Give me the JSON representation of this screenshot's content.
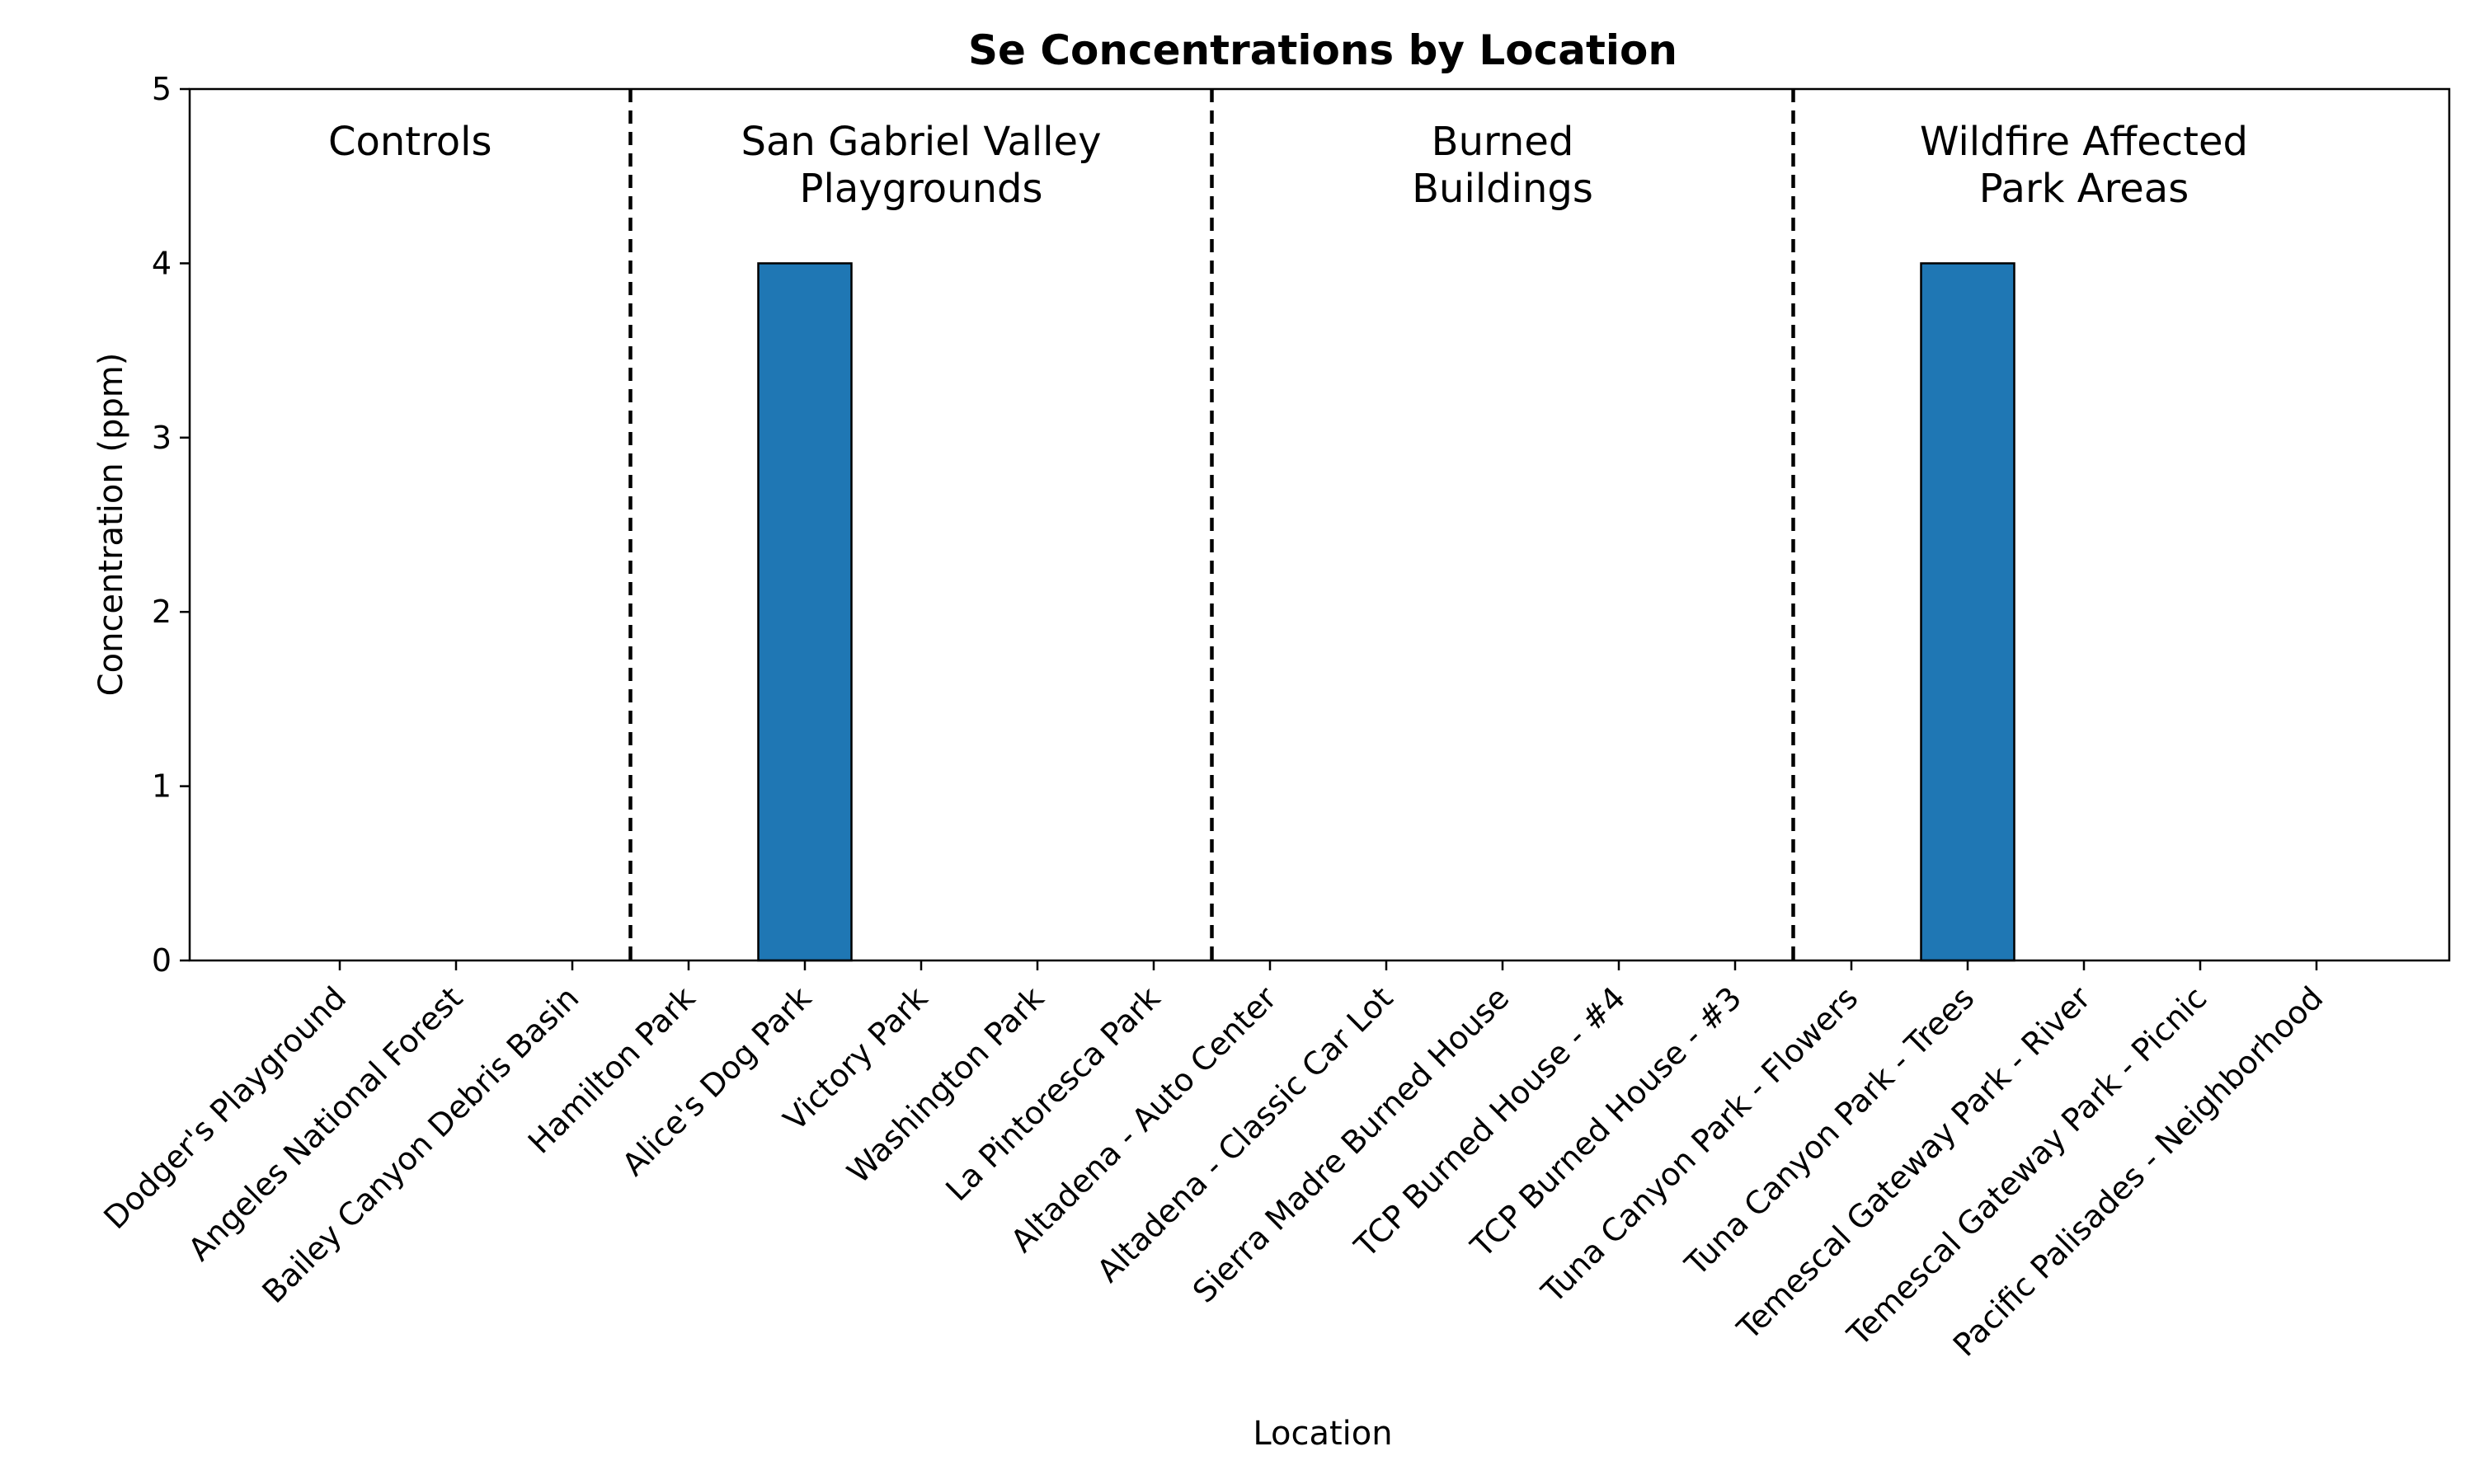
{
  "chart_data": {
    "type": "bar",
    "title": "Se Concentrations by Location",
    "xlabel": "Location",
    "ylabel": "Concentration (ppm)",
    "ylim": [
      0,
      5
    ],
    "yticks": [
      "0",
      "1",
      "2",
      "3",
      "4",
      "5"
    ],
    "grid": false,
    "bar_color": "#1f77b4",
    "categories": [
      "Dodger's Playground",
      "Angeles National Forest",
      "Bailey Canyon Debris Basin",
      "Hamilton Park",
      "Alice's Dog Park",
      "Victory Park",
      "Washington Park",
      "La Pintoresca Park",
      "Altadena - Auto Center",
      "Altadena - Classic Car Lot",
      "Sierra Madre Burned House",
      "TCP Burned House - #4",
      "TCP Burned House - #3",
      "Tuna Canyon Park - Flowers",
      "Tuna Canyon Park - Trees",
      "Temescal Gateway Park - River",
      "Temescal Gateway Park - Picnic",
      "Pacific Palisades - Neighborhood"
    ],
    "values": [
      0,
      0,
      0,
      0,
      4,
      0,
      0,
      0,
      0,
      0,
      0,
      0,
      0,
      0,
      4,
      0,
      0,
      0
    ],
    "groups": [
      {
        "lines": [
          "Controls"
        ],
        "start": 0,
        "end": 3
      },
      {
        "lines": [
          "San Gabriel Valley",
          "Playgrounds"
        ],
        "start": 3,
        "end": 8
      },
      {
        "lines": [
          "Burned",
          "Buildings"
        ],
        "start": 8,
        "end": 13
      },
      {
        "lines": [
          "Wildfire Affected",
          "Park Areas"
        ],
        "start": 13,
        "end": 18
      }
    ]
  }
}
